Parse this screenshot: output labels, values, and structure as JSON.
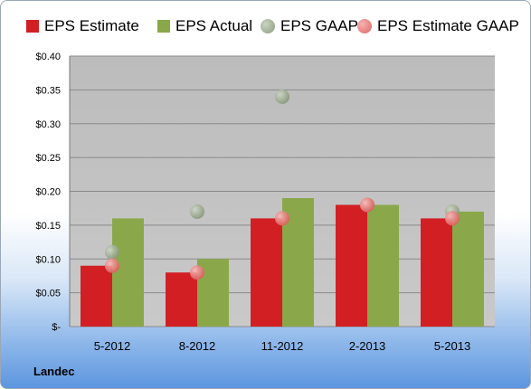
{
  "company": "Landec",
  "chart_data": {
    "type": "bar",
    "categories": [
      "5-2012",
      "8-2012",
      "11-2012",
      "2-2013",
      "5-2013"
    ],
    "series": [
      {
        "name": "EPS Estimate",
        "kind": "bar",
        "color": "#d21f24",
        "values": [
          0.09,
          0.08,
          0.16,
          0.18,
          0.16
        ]
      },
      {
        "name": "EPS Actual",
        "kind": "bar",
        "color": "#8aa84a",
        "values": [
          0.16,
          0.1,
          0.19,
          0.18,
          0.17
        ]
      },
      {
        "name": "EPS GAAP",
        "kind": "scatter",
        "color": "#9aaa8e",
        "values": [
          0.11,
          0.17,
          0.34,
          0.18,
          0.17
        ]
      },
      {
        "name": "EPS Estimate GAAP",
        "kind": "scatter",
        "color": "#ec7a7a",
        "values": [
          0.09,
          0.08,
          0.16,
          0.18,
          0.16
        ]
      }
    ],
    "ylim": [
      0,
      0.4
    ],
    "yticks": [
      0,
      0.05,
      0.1,
      0.15,
      0.2,
      0.25,
      0.3,
      0.35,
      0.4
    ],
    "ytick_labels": [
      "$-",
      "$0.05",
      "$0.10",
      "$0.15",
      "$0.20",
      "$0.25",
      "$0.30",
      "$0.35",
      "$0.40"
    ],
    "grid": true,
    "legend": "top"
  }
}
